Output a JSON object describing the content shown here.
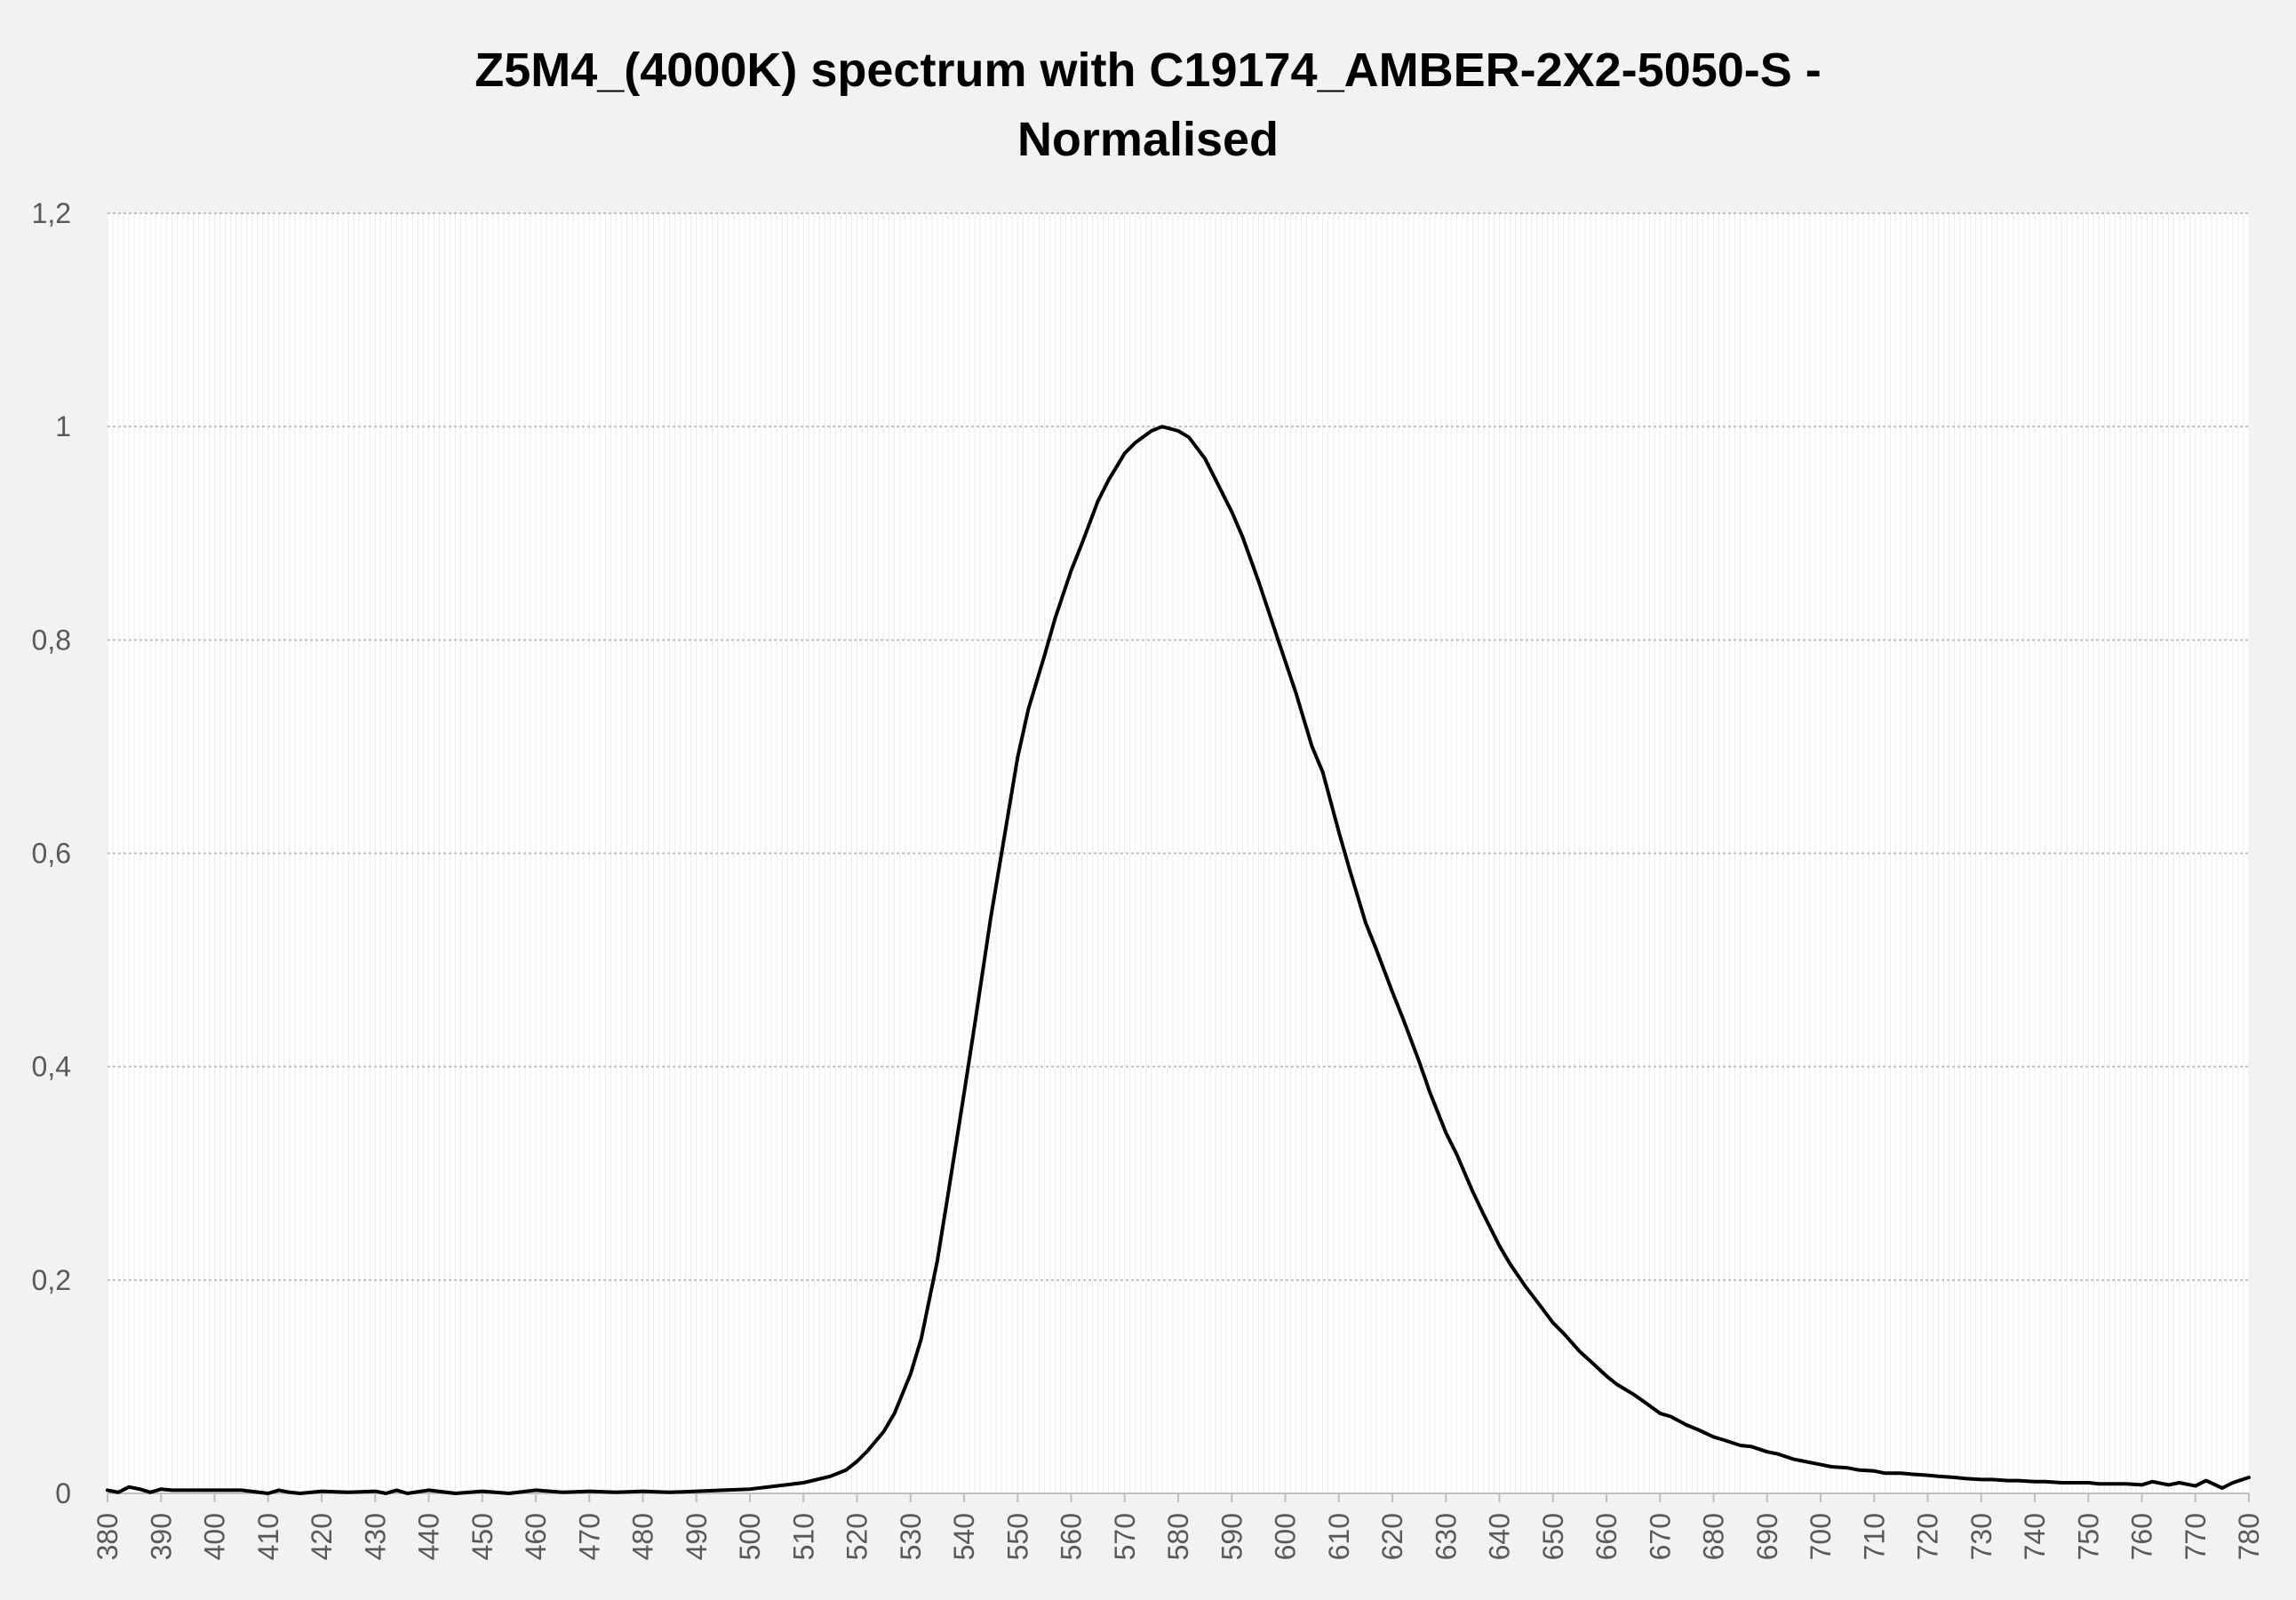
{
  "chart_data": {
    "type": "line",
    "title_lines": [
      "Z5M4_(4000K) spectrum with C19174_AMBER-2X2-5050-S -",
      "Normalised"
    ],
    "xlabel": "",
    "ylabel": "",
    "xlim": [
      380,
      780
    ],
    "ylim": [
      0,
      1.2
    ],
    "y_ticks": [
      "0",
      "0,2",
      "0,4",
      "0,6",
      "0,8",
      "1",
      "1,2"
    ],
    "x_tick_step": 10,
    "grid": true,
    "legend": "none",
    "colors": {
      "line": "#000000",
      "background": "#f2f2f2",
      "plot_background": "#ffffff",
      "gridline": "#bfbfbf",
      "tick_text": "#595959"
    },
    "series": [
      {
        "x": [
          380,
          382,
          384,
          386,
          388,
          390,
          392,
          394,
          396,
          398,
          400,
          405,
          410,
          412,
          414,
          416,
          420,
          425,
          430,
          432,
          434,
          436,
          440,
          445,
          450,
          455,
          460,
          465,
          470,
          475,
          480,
          485,
          490,
          495,
          500,
          505,
          510,
          515,
          518,
          520,
          522,
          525,
          527,
          530,
          532,
          535,
          537,
          540,
          542,
          545,
          547,
          550,
          552,
          555,
          557,
          560,
          562,
          565,
          567,
          570,
          572,
          575,
          577,
          580,
          582,
          585,
          587,
          590,
          592,
          595,
          597,
          600,
          602,
          605,
          607,
          610,
          612,
          615,
          617,
          620,
          622,
          625,
          627,
          630,
          632,
          635,
          637,
          640,
          642,
          645,
          647,
          650,
          652,
          655,
          657,
          660,
          662,
          665,
          667,
          670,
          672,
          675,
          677,
          680,
          682,
          685,
          687,
          690,
          692,
          695,
          697,
          700,
          702,
          705,
          707,
          710,
          712,
          715,
          717,
          720,
          722,
          725,
          727,
          730,
          732,
          735,
          737,
          740,
          742,
          745,
          747,
          750,
          752,
          755,
          757,
          760,
          762,
          765,
          767,
          770,
          772,
          775,
          777,
          780
        ],
        "y": [
          0.003,
          0.001,
          0.006,
          0.004,
          0.001,
          0.004,
          0.003,
          0.003,
          0.003,
          0.003,
          0.003,
          0.003,
          0.0,
          0.003,
          0.001,
          0.0,
          0.002,
          0.001,
          0.002,
          0.0,
          0.003,
          0.0,
          0.003,
          0.0,
          0.002,
          0.0,
          0.003,
          0.001,
          0.002,
          0.001,
          0.002,
          0.001,
          0.002,
          0.003,
          0.004,
          0.007,
          0.01,
          0.016,
          0.022,
          0.03,
          0.04,
          0.058,
          0.075,
          0.112,
          0.145,
          0.218,
          0.28,
          0.375,
          0.44,
          0.54,
          0.6,
          0.69,
          0.735,
          0.785,
          0.82,
          0.865,
          0.89,
          0.93,
          0.95,
          0.975,
          0.985,
          0.996,
          1.0,
          0.996,
          0.99,
          0.97,
          0.95,
          0.92,
          0.897,
          0.855,
          0.825,
          0.78,
          0.75,
          0.7,
          0.676,
          0.62,
          0.585,
          0.535,
          0.51,
          0.47,
          0.445,
          0.405,
          0.376,
          0.338,
          0.318,
          0.283,
          0.262,
          0.232,
          0.215,
          0.193,
          0.18,
          0.16,
          0.15,
          0.133,
          0.124,
          0.11,
          0.102,
          0.093,
          0.086,
          0.075,
          0.072,
          0.064,
          0.06,
          0.053,
          0.05,
          0.045,
          0.044,
          0.039,
          0.037,
          0.032,
          0.03,
          0.027,
          0.025,
          0.024,
          0.022,
          0.021,
          0.019,
          0.019,
          0.018,
          0.017,
          0.016,
          0.015,
          0.014,
          0.013,
          0.013,
          0.012,
          0.012,
          0.011,
          0.011,
          0.01,
          0.01,
          0.01,
          0.009,
          0.009,
          0.009,
          0.008,
          0.011,
          0.008,
          0.01,
          0.007,
          0.012,
          0.005,
          0.01,
          0.015
        ]
      }
    ]
  }
}
